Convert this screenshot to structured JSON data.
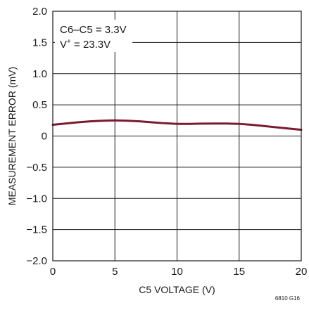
{
  "chart_data": {
    "type": "line",
    "title": "",
    "xlabel": "C5 VOLTAGE (V)",
    "ylabel": "MEASUREMENT ERROR (mV)",
    "xlim": [
      0,
      20
    ],
    "ylim": [
      -2.0,
      2.0
    ],
    "grid": true,
    "x_ticks": [
      0,
      5,
      10,
      15,
      20
    ],
    "x_tick_labels": [
      "0",
      "5",
      "10",
      "15",
      "20"
    ],
    "y_ticks": [
      -2.0,
      -1.5,
      -1.0,
      -0.5,
      0,
      0.5,
      1.0,
      1.5,
      2.0
    ],
    "y_tick_labels": [
      "−2.0",
      "−1.5",
      "−1.0",
      "−0.5",
      "0",
      "0.5",
      "1.0",
      "1.5",
      "2.0"
    ],
    "annotations": {
      "line1": "C6–C5 = 3.3V",
      "line2_base": "V",
      "line2_sup": "+",
      "line2_rest": " = 23.3V"
    },
    "figure_id": "6810 G16",
    "series": [
      {
        "color": "#7b1a2e",
        "x": [
          0,
          1,
          2,
          3,
          4,
          5,
          6,
          7,
          8,
          9,
          10,
          11,
          12,
          13,
          14,
          15,
          16,
          17,
          18,
          19,
          20
        ],
        "y": [
          0.18,
          0.2,
          0.22,
          0.235,
          0.245,
          0.25,
          0.245,
          0.235,
          0.22,
          0.205,
          0.195,
          0.195,
          0.198,
          0.2,
          0.2,
          0.195,
          0.18,
          0.16,
          0.14,
          0.12,
          0.1
        ]
      }
    ]
  }
}
